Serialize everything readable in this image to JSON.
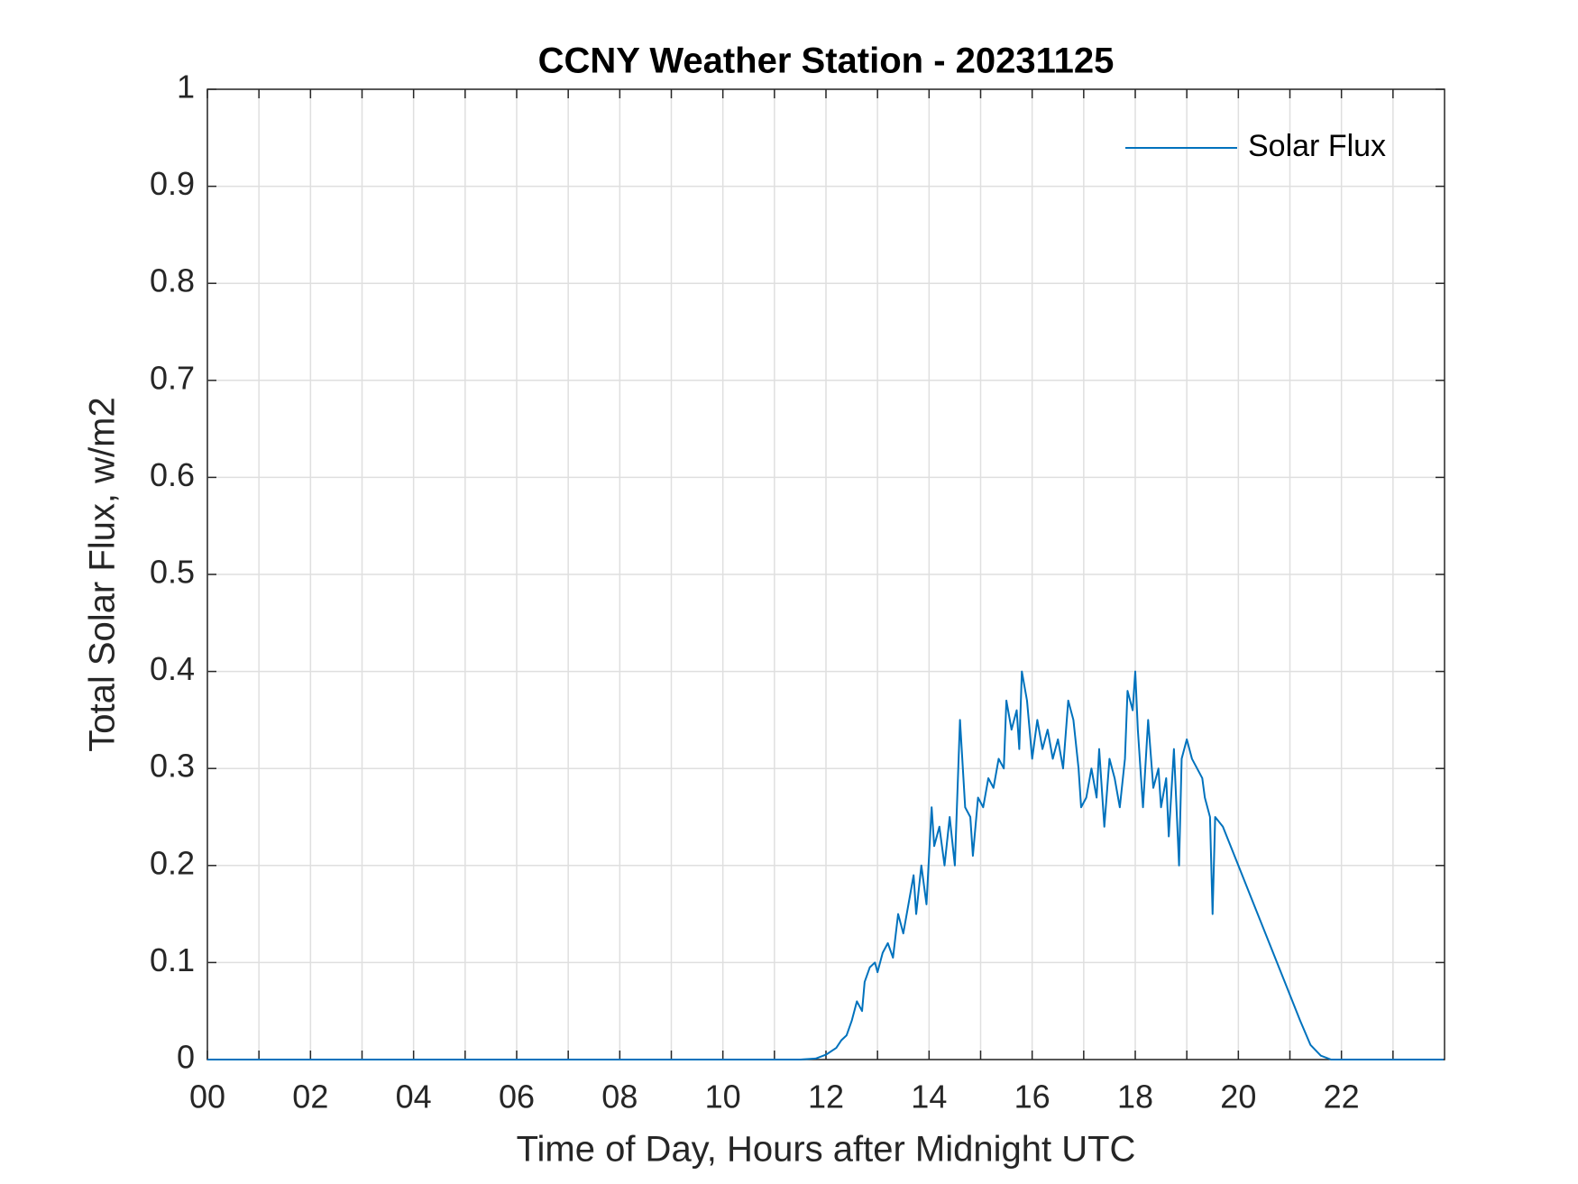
{
  "chart_data": {
    "type": "line",
    "title": "CCNY Weather Station - 20231125",
    "xlabel": "Time of Day, Hours after Midnight UTC",
    "ylabel": "Total Solar Flux, w/m2",
    "xlim": [
      0,
      24
    ],
    "xticks": [
      {
        "value": 0,
        "label": "00"
      },
      {
        "value": 2,
        "label": "02"
      },
      {
        "value": 4,
        "label": "04"
      },
      {
        "value": 6,
        "label": "06"
      },
      {
        "value": 8,
        "label": "08"
      },
      {
        "value": 10,
        "label": "10"
      },
      {
        "value": 12,
        "label": "12"
      },
      {
        "value": 14,
        "label": "14"
      },
      {
        "value": 16,
        "label": "16"
      },
      {
        "value": 18,
        "label": "18"
      },
      {
        "value": 20,
        "label": "20"
      },
      {
        "value": 22,
        "label": "22"
      }
    ],
    "xminorticks": [
      1,
      3,
      5,
      7,
      9,
      11,
      13,
      15,
      17,
      19,
      21,
      23
    ],
    "ylim": [
      0,
      1
    ],
    "yticks": [
      0,
      0.1,
      0.2,
      0.3,
      0.4,
      0.5,
      0.6,
      0.7,
      0.8,
      0.9,
      1
    ],
    "grid": true,
    "legend": "top-right",
    "x": [
      0,
      11.5,
      11.8,
      12.0,
      12.2,
      12.3,
      12.4,
      12.5,
      12.6,
      12.7,
      12.75,
      12.85,
      12.95,
      13.0,
      13.1,
      13.2,
      13.3,
      13.4,
      13.5,
      13.6,
      13.7,
      13.75,
      13.85,
      13.95,
      14.05,
      14.1,
      14.2,
      14.3,
      14.4,
      14.5,
      14.6,
      14.7,
      14.8,
      14.85,
      14.95,
      15.05,
      15.15,
      15.25,
      15.35,
      15.45,
      15.5,
      15.6,
      15.7,
      15.75,
      15.8,
      15.9,
      16.0,
      16.1,
      16.2,
      16.3,
      16.4,
      16.5,
      16.6,
      16.7,
      16.8,
      16.9,
      16.95,
      17.05,
      17.15,
      17.25,
      17.3,
      17.4,
      17.5,
      17.6,
      17.7,
      17.8,
      17.85,
      17.95,
      18.0,
      18.05,
      18.1,
      18.15,
      18.25,
      18.35,
      18.45,
      18.5,
      18.6,
      18.65,
      18.75,
      18.85,
      18.9,
      19.0,
      19.1,
      19.2,
      19.3,
      19.35,
      19.45,
      19.5,
      19.55,
      19.7,
      20.0,
      20.3,
      20.6,
      20.9,
      21.2,
      21.4,
      21.6,
      21.8,
      23.98
    ],
    "series": [
      {
        "name": "Solar Flux",
        "color": "#0072bd",
        "values": [
          0,
          0,
          0.001,
          0.005,
          0.012,
          0.02,
          0.025,
          0.04,
          0.06,
          0.05,
          0.08,
          0.095,
          0.1,
          0.09,
          0.11,
          0.12,
          0.105,
          0.15,
          0.13,
          0.16,
          0.19,
          0.15,
          0.2,
          0.16,
          0.26,
          0.22,
          0.24,
          0.2,
          0.25,
          0.2,
          0.35,
          0.26,
          0.25,
          0.21,
          0.27,
          0.26,
          0.29,
          0.28,
          0.31,
          0.3,
          0.37,
          0.34,
          0.36,
          0.32,
          0.4,
          0.37,
          0.31,
          0.35,
          0.32,
          0.34,
          0.31,
          0.33,
          0.3,
          0.37,
          0.35,
          0.3,
          0.26,
          0.27,
          0.3,
          0.27,
          0.32,
          0.24,
          0.31,
          0.29,
          0.26,
          0.31,
          0.38,
          0.36,
          0.4,
          0.34,
          0.3,
          0.26,
          0.35,
          0.28,
          0.3,
          0.26,
          0.29,
          0.23,
          0.32,
          0.2,
          0.31,
          0.33,
          0.31,
          0.3,
          0.29,
          0.27,
          0.25,
          0.15,
          0.25,
          0.24,
          0.2,
          0.16,
          0.12,
          0.08,
          0.04,
          0.015,
          0.004,
          0,
          0
        ]
      }
    ]
  }
}
